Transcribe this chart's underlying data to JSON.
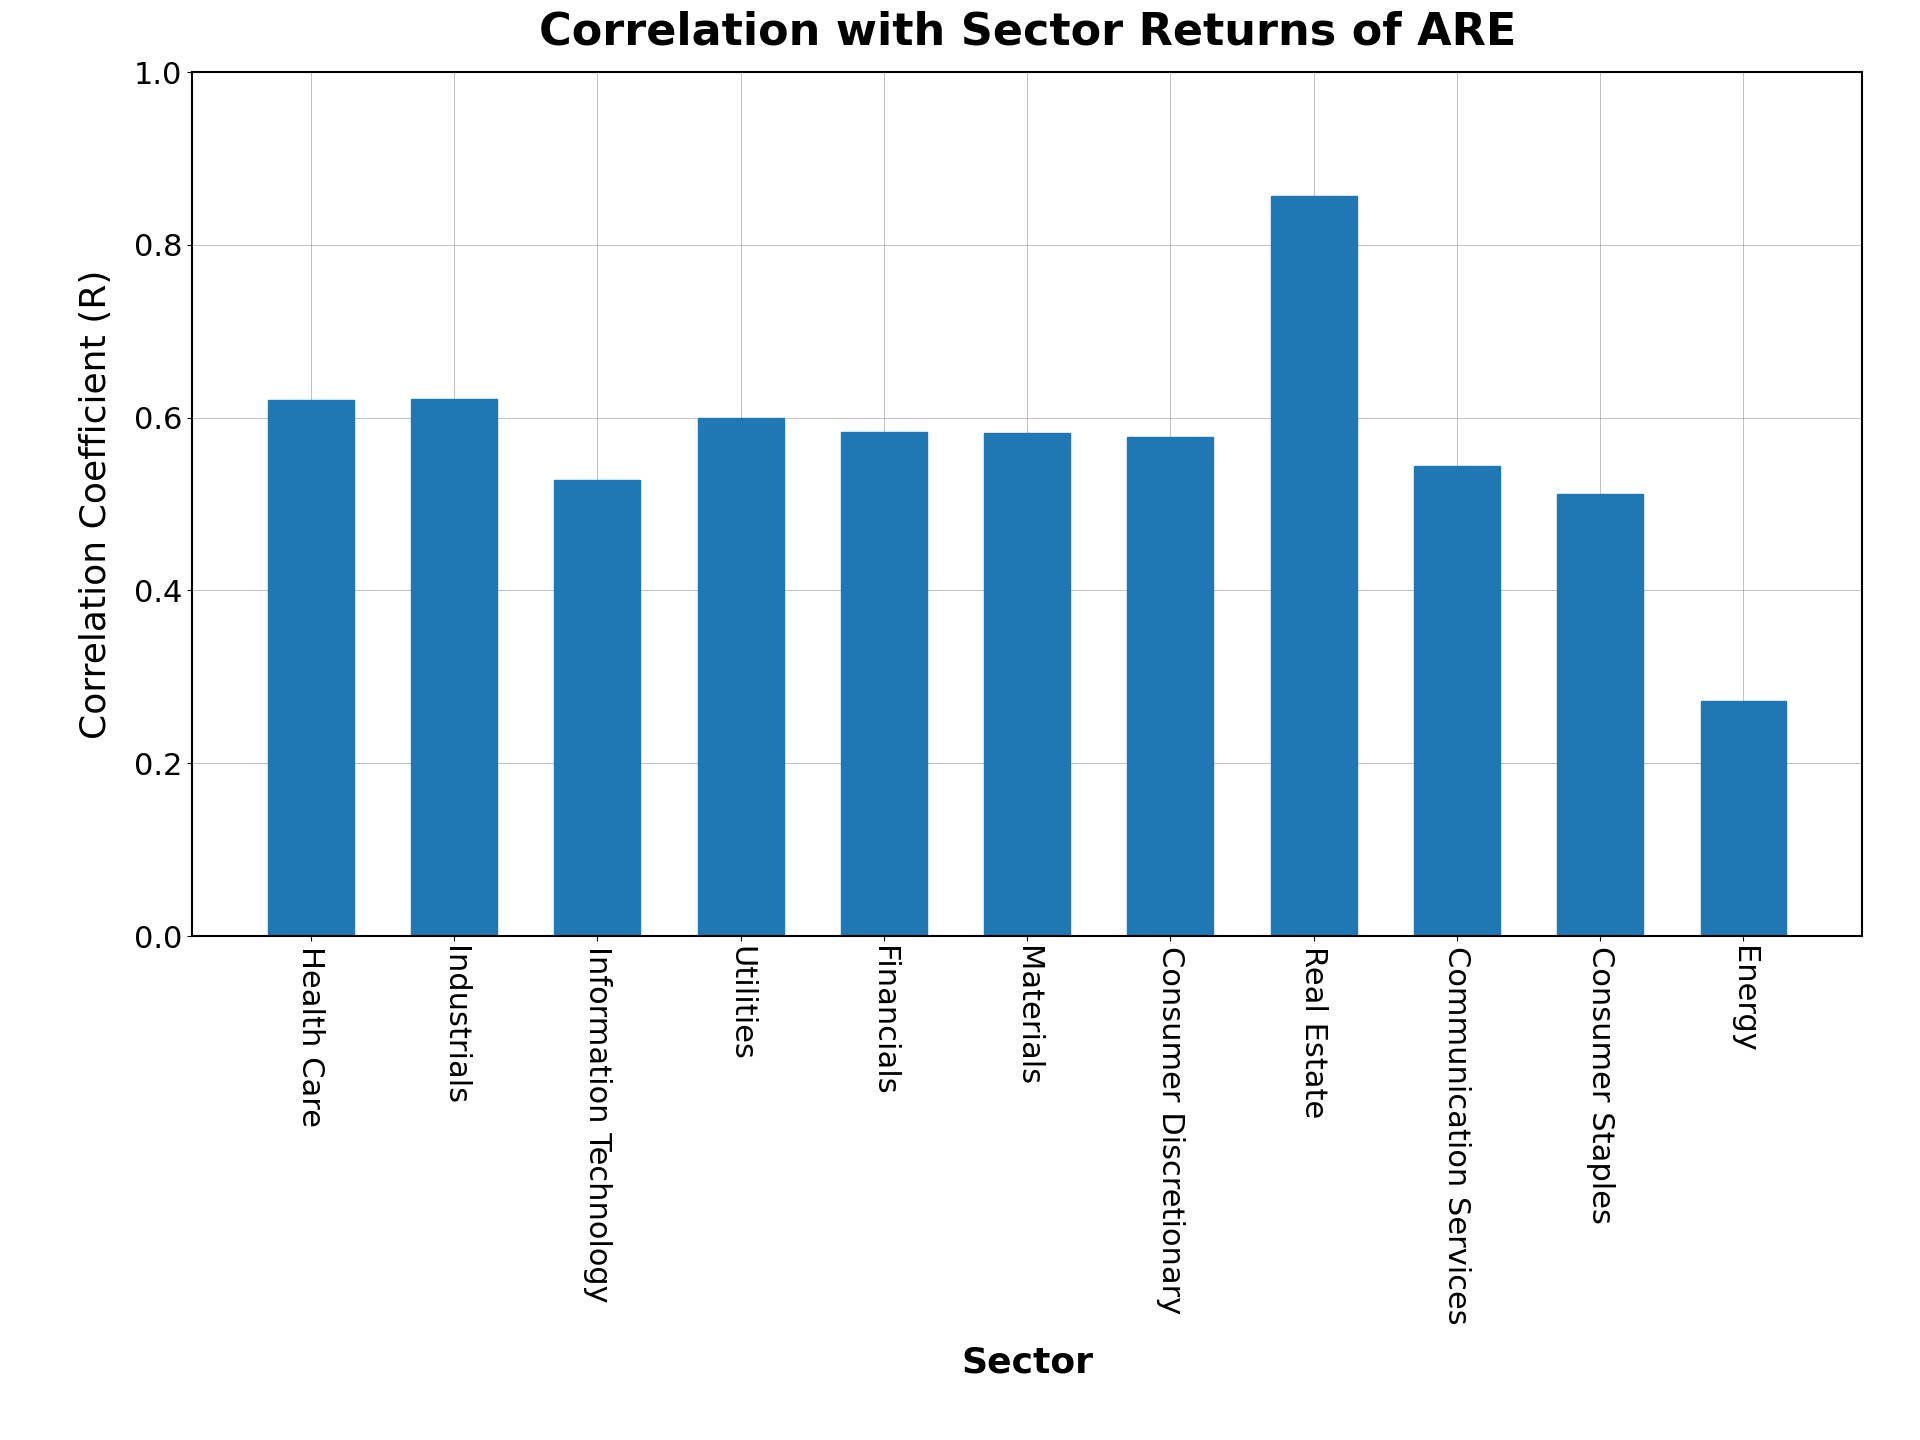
{
  "title": "Correlation with Sector Returns of ARE",
  "xlabel": "Sector",
  "ylabel": "Correlation Coefficient (R)",
  "categories": [
    "Health Care",
    "Industrials",
    "Information Technology",
    "Utilities",
    "Financials",
    "Materials",
    "Consumer Discretionary",
    "Real Estate",
    "Communication Services",
    "Consumer Staples",
    "Energy"
  ],
  "values": [
    0.62,
    0.622,
    0.528,
    0.6,
    0.583,
    0.582,
    0.577,
    0.856,
    0.544,
    0.511,
    0.272
  ],
  "bar_color": "#1f77b4",
  "ylim": [
    0.0,
    1.0
  ],
  "yticks": [
    0.0,
    0.2,
    0.4,
    0.6,
    0.8,
    1.0
  ],
  "title_fontsize": 32,
  "label_fontsize": 26,
  "tick_fontsize": 22,
  "xtick_fontsize": 22,
  "figsize": [
    19.2,
    14.4
  ],
  "dpi": 100,
  "grid": true,
  "background_color": "#ffffff",
  "bar_width": 0.6
}
